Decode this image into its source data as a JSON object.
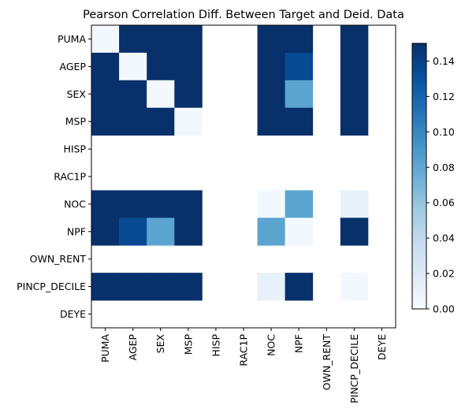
{
  "chart_data": {
    "type": "heatmap",
    "title": "Pearson Correlation Diff. Between Target and Deid. Data",
    "variables": [
      "PUMA",
      "AGEP",
      "SEX",
      "MSP",
      "HISP",
      "RAC1P",
      "NOC",
      "NPF",
      "OWN_RENT",
      "PINCP_DECILE",
      "DEYE"
    ],
    "values": [
      [
        0.003,
        0.15,
        0.15,
        0.15,
        null,
        null,
        0.15,
        0.15,
        null,
        0.15,
        null
      ],
      [
        0.15,
        0.003,
        0.15,
        0.15,
        null,
        null,
        0.15,
        0.135,
        null,
        0.15,
        null
      ],
      [
        0.15,
        0.15,
        0.003,
        0.15,
        null,
        null,
        0.15,
        0.082,
        null,
        0.15,
        null
      ],
      [
        0.15,
        0.15,
        0.15,
        0.003,
        null,
        null,
        0.15,
        0.15,
        null,
        0.15,
        null
      ],
      [
        null,
        null,
        null,
        null,
        null,
        null,
        null,
        null,
        null,
        null,
        null
      ],
      [
        null,
        null,
        null,
        null,
        null,
        null,
        null,
        null,
        null,
        null,
        null
      ],
      [
        0.15,
        0.15,
        0.15,
        0.15,
        null,
        null,
        0.003,
        0.082,
        null,
        0.012,
        null
      ],
      [
        0.15,
        0.135,
        0.082,
        0.15,
        null,
        null,
        0.082,
        0.003,
        null,
        0.15,
        null
      ],
      [
        null,
        null,
        null,
        null,
        null,
        null,
        null,
        null,
        null,
        null,
        null
      ],
      [
        0.15,
        0.15,
        0.15,
        0.15,
        null,
        null,
        0.012,
        0.15,
        null,
        0.003,
        null
      ],
      [
        null,
        null,
        null,
        null,
        null,
        null,
        null,
        null,
        null,
        null,
        null
      ]
    ],
    "colorbar": {
      "min": 0.0,
      "max": 0.15,
      "ticks": [
        "0.00",
        "0.02",
        "0.04",
        "0.06",
        "0.08",
        "0.10",
        "0.12",
        "0.14"
      ],
      "colormap": "Blues"
    },
    "grid": false
  }
}
